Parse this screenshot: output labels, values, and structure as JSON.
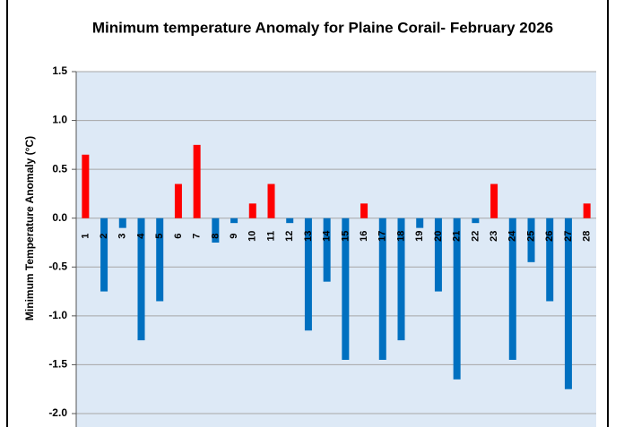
{
  "chart_data": {
    "type": "bar",
    "title": "Minimum temperature Anomaly for Plaine Corail- February 2026",
    "y_label": "Minimum Temperature Anomaly (°C)",
    "categories": [
      "1",
      "2",
      "3",
      "4",
      "5",
      "6",
      "7",
      "8",
      "9",
      "10",
      "11",
      "12",
      "13",
      "14",
      "15",
      "16",
      "17",
      "18",
      "19",
      "20",
      "21",
      "22",
      "23",
      "24",
      "25",
      "26",
      "27",
      "28"
    ],
    "values": [
      0.65,
      -0.75,
      -0.1,
      -1.25,
      -0.85,
      0.35,
      0.75,
      -0.25,
      -0.05,
      0.15,
      0.35,
      -0.05,
      -1.15,
      -0.65,
      -1.45,
      0.15,
      -1.45,
      -1.25,
      -0.1,
      -0.75,
      -1.65,
      -0.05,
      0.35,
      -1.45,
      -0.45,
      -0.85,
      -1.75,
      0.15
    ],
    "colors": {
      "positive": "#ff0000",
      "negative": "#0070c0"
    },
    "ylim": [
      -2.0,
      1.5
    ],
    "yticks": [
      1.5,
      {
        "value": 1.0,
        "label": "1.0"
      },
      0.5,
      {
        "value": 0.0,
        "label": "0.0"
      },
      -0.5,
      {
        "value": -1.0,
        "label": "-1.0"
      },
      -1.5,
      {
        "value": -2.0,
        "label": "-2.0"
      }
    ],
    "grid": true
  }
}
